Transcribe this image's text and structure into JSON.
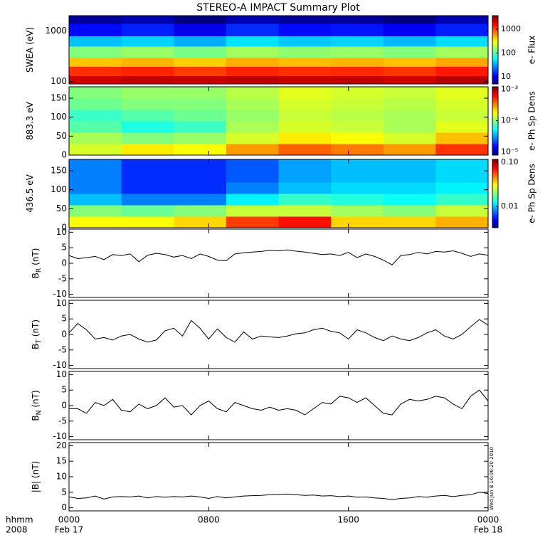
{
  "title": "STEREO-A IMPACT Summary Plot",
  "timestamp": "Wed Jun  8 16:06:20 2010",
  "x_axis": {
    "x": [
      0,
      0.5,
      1,
      1.5,
      2,
      2.5,
      3,
      3.5,
      4,
      4.5,
      5,
      5.5,
      6,
      6.5,
      7,
      7.5,
      8,
      8.5,
      9,
      9.5,
      10,
      10.5,
      11,
      11.5,
      12,
      12.5,
      13,
      13.5,
      14,
      14.5,
      15,
      15.5,
      16,
      16.5,
      17,
      17.5,
      18,
      18.5,
      19,
      19.5,
      20,
      20.5,
      21,
      21.5,
      22,
      22.5,
      23,
      23.5,
      24
    ],
    "x_edges": [
      0,
      3,
      6,
      9,
      12,
      15,
      18,
      21,
      24
    ],
    "xlim": [
      0,
      24
    ],
    "xticks": [
      {
        "value": 0,
        "label": "0000"
      },
      {
        "value": 8,
        "label": "0800"
      },
      {
        "value": 16,
        "label": "1600"
      },
      {
        "value": 24,
        "label": "0000"
      }
    ],
    "dates": [
      {
        "value": 0,
        "label": "Feb 17"
      },
      {
        "value": 24,
        "label": "Feb 18"
      }
    ],
    "unit_label": "hhmm",
    "year": "2008"
  },
  "chart_data": [
    {
      "type": "heatmap",
      "ylabel": "SWEA (eV)",
      "ylog": true,
      "ylim": [
        90,
        2000
      ],
      "yticks": [
        100,
        1000
      ],
      "y_edges": [
        90,
        130,
        200,
        300,
        500,
        800,
        1400,
        2000
      ],
      "values": [
        [
          2200,
          2400,
          2300,
          2500,
          2300,
          2400,
          2200,
          2600
        ],
        [
          1200,
          1300,
          1100,
          1300,
          1200,
          1250,
          1150,
          1400
        ],
        [
          450,
          500,
          420,
          520,
          480,
          500,
          460,
          550
        ],
        [
          140,
          160,
          130,
          170,
          150,
          160,
          140,
          170
        ],
        [
          40,
          45,
          35,
          50,
          42,
          45,
          38,
          48
        ],
        [
          12,
          14,
          10,
          15,
          12,
          13,
          11,
          14
        ],
        [
          6,
          7,
          5,
          7,
          6,
          6,
          5,
          7
        ]
      ],
      "clim": [
        5,
        3700
      ],
      "cticks": [
        10,
        100,
        1000
      ],
      "clabel": "e- Flux"
    },
    {
      "type": "heatmap",
      "ylabel": "883.3 eV",
      "ylog": false,
      "ylim": [
        0,
        180
      ],
      "yticks": [
        0,
        50,
        100,
        150
      ],
      "y_edges": [
        0,
        30,
        60,
        90,
        120,
        150,
        180
      ],
      "values": [
        [
          0.00015,
          0.0002,
          0.00018,
          0.0003,
          0.0004,
          0.00035,
          0.0003,
          0.0005
        ],
        [
          0.00012,
          0.0001,
          0.00011,
          0.00015,
          0.0002,
          0.00018,
          0.00015,
          0.00025
        ],
        [
          8e-05,
          6e-05,
          7e-05,
          0.00012,
          0.00015,
          0.00014,
          0.00012,
          0.00016
        ],
        [
          7e-05,
          8e-05,
          9e-05,
          0.00011,
          0.00014,
          0.00013,
          0.00012,
          0.00014
        ],
        [
          9e-05,
          0.0001,
          0.0001,
          0.00012,
          0.00015,
          0.00014,
          0.00013,
          0.00015
        ],
        [
          0.0001,
          0.00011,
          0.00011,
          0.00013,
          0.00016,
          0.00015,
          0.00014,
          0.00016
        ]
      ],
      "clim": [
        8e-06,
        0.0012
      ],
      "cticks": [
        {
          "value": 1e-05,
          "label": "10⁻⁵"
        },
        {
          "value": 0.0001,
          "label": "10⁻⁴"
        },
        {
          "value": 0.001,
          "label": "10⁻³"
        }
      ],
      "clabel": "e- Ph Sp Dens"
    },
    {
      "type": "heatmap",
      "ylabel": "436.5 eV",
      "ylog": false,
      "ylim": [
        0,
        180
      ],
      "yticks": [
        0,
        50,
        100,
        150
      ],
      "y_edges": [
        0,
        30,
        60,
        90,
        120,
        150,
        180
      ],
      "values": [
        [
          0.03,
          0.03,
          0.035,
          0.06,
          0.07,
          0.035,
          0.035,
          0.04
        ],
        [
          0.02,
          0.018,
          0.02,
          0.025,
          0.025,
          0.022,
          0.02,
          0.025
        ],
        [
          0.01,
          0.008,
          0.008,
          0.012,
          0.015,
          0.014,
          0.013,
          0.015
        ],
        [
          0.008,
          0.006,
          0.006,
          0.008,
          0.01,
          0.011,
          0.011,
          0.012
        ],
        [
          0.008,
          0.006,
          0.006,
          0.007,
          0.009,
          0.01,
          0.01,
          0.011
        ],
        [
          0.008,
          0.006,
          0.006,
          0.007,
          0.009,
          0.01,
          0.01,
          0.011
        ]
      ],
      "clim": [
        0.0033,
        0.115
      ],
      "cticks": [
        {
          "value": 0.01,
          "label": "0.01"
        },
        {
          "value": 0.1,
          "label": "0.10"
        }
      ],
      "clabel": "e- Ph Sp Dens"
    },
    {
      "type": "line",
      "ylabel": "B",
      "ylabel_sub": "R",
      "ylabel_unit": "(nT)",
      "ylim": [
        -11,
        11
      ],
      "yticks": [
        -10,
        -5,
        0,
        5,
        10
      ],
      "color": "#000000",
      "values": [
        2.5,
        1.5,
        1.8,
        2.2,
        1.2,
        2.8,
        2.5,
        3.0,
        0.5,
        2.6,
        3.2,
        2.8,
        2.0,
        2.5,
        1.5,
        3.0,
        2.2,
        1.0,
        0.8,
        3.0,
        3.4,
        3.6,
        3.8,
        4.2,
        4.0,
        4.3,
        3.9,
        3.6,
        3.2,
        2.8,
        3.0,
        2.5,
        3.5,
        1.8,
        3.0,
        2.2,
        1.0,
        -0.5,
        2.5,
        2.8,
        3.5,
        3.0,
        3.8,
        3.6,
        4.0,
        3.2,
        2.2,
        3.0,
        2.6
      ]
    },
    {
      "type": "line",
      "ylabel": "B",
      "ylabel_sub": "T",
      "ylabel_unit": "(nT)",
      "ylim": [
        -11,
        11
      ],
      "yticks": [
        -10,
        -5,
        0,
        5,
        10
      ],
      "color": "#000000",
      "values": [
        0.5,
        3.5,
        1.5,
        -1.5,
        -1.0,
        -1.8,
        -0.5,
        0.0,
        -1.5,
        -2.5,
        -1.8,
        1.2,
        2.0,
        -0.5,
        4.5,
        2.0,
        -1.5,
        1.8,
        -1.0,
        -2.5,
        0.8,
        -1.5,
        -0.5,
        -0.8,
        -1.0,
        -0.5,
        0.2,
        0.5,
        1.5,
        2.0,
        1.0,
        0.5,
        -1.5,
        1.5,
        0.5,
        -1.0,
        -2.0,
        -0.5,
        -1.5,
        -2.0,
        -1.0,
        0.5,
        1.5,
        -0.5,
        -1.5,
        0.0,
        2.5,
        4.8,
        3.0
      ]
    },
    {
      "type": "line",
      "ylabel": "B",
      "ylabel_sub": "N",
      "ylabel_unit": "(nT)",
      "ylim": [
        -11,
        11
      ],
      "yticks": [
        -10,
        -5,
        0,
        5,
        10
      ],
      "color": "#000000",
      "values": [
        -1.0,
        -1.0,
        -2.5,
        1.0,
        0.0,
        2.0,
        -1.5,
        -2.0,
        0.5,
        -1.0,
        0.0,
        2.5,
        -0.5,
        0.0,
        -3.0,
        0.0,
        1.5,
        -1.0,
        -2.0,
        1.0,
        0.0,
        -1.0,
        -1.5,
        -0.5,
        -1.5,
        -1.0,
        -1.5,
        -3.0,
        -1.0,
        1.0,
        0.5,
        3.0,
        2.5,
        1.0,
        2.5,
        0.0,
        -2.5,
        -3.0,
        0.5,
        2.0,
        1.5,
        2.0,
        3.0,
        2.5,
        0.5,
        -1.0,
        3.0,
        5.0,
        1.5
      ]
    },
    {
      "type": "line",
      "ylabel": "|B| (nT)",
      "ylim": [
        -1,
        21
      ],
      "yticks": [
        0,
        5,
        10,
        15,
        20
      ],
      "color": "#000000",
      "values": [
        3.5,
        3.0,
        3.2,
        3.8,
        2.8,
        3.5,
        3.6,
        3.5,
        3.8,
        3.2,
        3.6,
        3.4,
        3.6,
        3.5,
        3.8,
        3.5,
        3.0,
        3.6,
        3.2,
        3.5,
        3.8,
        3.9,
        4.0,
        4.2,
        4.3,
        4.4,
        4.2,
        4.0,
        4.1,
        3.8,
        3.9,
        3.6,
        3.8,
        3.4,
        3.5,
        3.2,
        3.0,
        2.6,
        3.0,
        3.2,
        3.6,
        3.4,
        3.8,
        4.0,
        3.6,
        4.0,
        4.2,
        5.0,
        4.6
      ]
    }
  ]
}
